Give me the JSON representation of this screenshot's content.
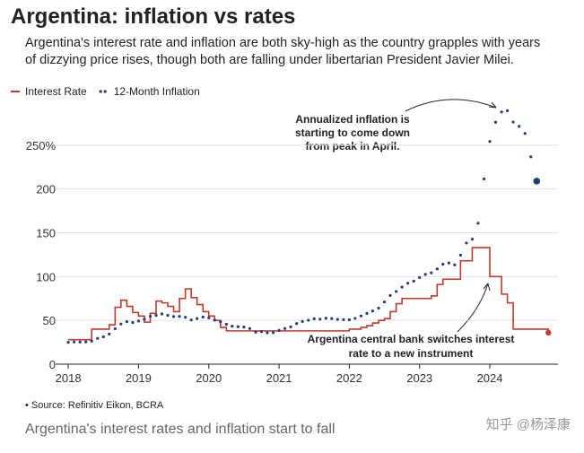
{
  "chart_data": {
    "type": "line",
    "title": "Argentina: inflation vs rates",
    "subtitle": [
      "Argentina's interest rate and inflation are both sky-high as the country grapples with years",
      "of dizzying price rises, though both are falling under libertarian President Javier Milei."
    ],
    "annotations": [
      [
        "Annualized inflation is",
        "starting to come down",
        "from peak in April."
      ],
      [
        "Argentina central bank switches interest",
        "rate to a new instrument"
      ]
    ],
    "source": "• Source: Refinitiv Eikon, BCRA",
    "caption": "Argentina's interest rates and inflation start to fall",
    "watermark": "知乎 @杨泽康",
    "xlim": [
      2017.82,
      2024.97
    ],
    "xticks": [
      2018,
      2019,
      2020,
      2021,
      2022,
      2023,
      2024
    ],
    "ylim": [
      0,
      300
    ],
    "yticks": [
      0,
      50,
      100,
      150,
      200,
      {
        "value": 250,
        "label": "250%"
      }
    ],
    "grid": true,
    "series": [
      {
        "name": "Interest Rate",
        "color": "#c0392b",
        "style": "step",
        "x": [
          2018.0,
          2018.083,
          2018.167,
          2018.25,
          2018.333,
          2018.417,
          2018.5,
          2018.583,
          2018.667,
          2018.75,
          2018.833,
          2018.917,
          2019.0,
          2019.083,
          2019.167,
          2019.25,
          2019.333,
          2019.417,
          2019.5,
          2019.583,
          2019.667,
          2019.75,
          2019.833,
          2019.917,
          2020.0,
          2020.083,
          2020.167,
          2020.25,
          2020.333,
          2020.417,
          2020.5,
          2020.583,
          2020.667,
          2020.75,
          2020.833,
          2020.917,
          2021.0,
          2021.083,
          2021.167,
          2021.25,
          2021.333,
          2021.417,
          2021.5,
          2021.583,
          2021.667,
          2021.75,
          2021.833,
          2021.917,
          2022.0,
          2022.083,
          2022.167,
          2022.25,
          2022.333,
          2022.417,
          2022.5,
          2022.583,
          2022.667,
          2022.75,
          2022.833,
          2022.917,
          2023.0,
          2023.083,
          2023.167,
          2023.25,
          2023.333,
          2023.417,
          2023.5,
          2023.583,
          2023.667,
          2023.75,
          2023.833,
          2023.917,
          2024.0,
          2024.083,
          2024.167,
          2024.25,
          2024.333,
          2024.417,
          2024.5,
          2024.583,
          2024.667,
          2024.75,
          2024.833
        ],
        "values": [
          28,
          28,
          28,
          28,
          40,
          40,
          40,
          45,
          65,
          73,
          66,
          59,
          55,
          48,
          58,
          72,
          70,
          66,
          60,
          75,
          86,
          76,
          68,
          60,
          55,
          50,
          42,
          38,
          38,
          38,
          38,
          38,
          38,
          38,
          38,
          38,
          38,
          38,
          38,
          38,
          38,
          38,
          38,
          38,
          38,
          38,
          38,
          38,
          40,
          40,
          42,
          44,
          47,
          50,
          52,
          60,
          69,
          75,
          75,
          75,
          75,
          75,
          78,
          91,
          97,
          97,
          97,
          118,
          118,
          133,
          133,
          133,
          100,
          100,
          80,
          70,
          40,
          40,
          40,
          40,
          40,
          40,
          36
        ]
      },
      {
        "name": "12-Month Inflation",
        "color": "#1f3f7a",
        "style": "dots",
        "x": [
          2018.0,
          2018.083,
          2018.167,
          2018.25,
          2018.333,
          2018.417,
          2018.5,
          2018.583,
          2018.667,
          2018.75,
          2018.833,
          2018.917,
          2019.0,
          2019.083,
          2019.167,
          2019.25,
          2019.333,
          2019.417,
          2019.5,
          2019.583,
          2019.667,
          2019.75,
          2019.833,
          2019.917,
          2020.0,
          2020.083,
          2020.167,
          2020.25,
          2020.333,
          2020.417,
          2020.5,
          2020.583,
          2020.667,
          2020.75,
          2020.833,
          2020.917,
          2021.0,
          2021.083,
          2021.167,
          2021.25,
          2021.333,
          2021.417,
          2021.5,
          2021.583,
          2021.667,
          2021.75,
          2021.833,
          2021.917,
          2022.0,
          2022.083,
          2022.167,
          2022.25,
          2022.333,
          2022.417,
          2022.5,
          2022.583,
          2022.667,
          2022.75,
          2022.833,
          2022.917,
          2023.0,
          2023.083,
          2023.167,
          2023.25,
          2023.333,
          2023.417,
          2023.5,
          2023.583,
          2023.667,
          2023.75,
          2023.833,
          2023.917,
          2024.0,
          2024.083,
          2024.167,
          2024.25,
          2024.333,
          2024.417,
          2024.5,
          2024.583,
          2024.667
        ],
        "values": [
          25,
          25.4,
          25.4,
          25.5,
          26.3,
          29.5,
          31.2,
          34.4,
          40.5,
          45.9,
          48.5,
          47.6,
          49.3,
          51.3,
          54.7,
          55.8,
          57.3,
          55.8,
          54.4,
          54.5,
          53.5,
          50.5,
          52.1,
          53.8,
          52.9,
          50.3,
          48.4,
          45.6,
          43.4,
          42.8,
          42.4,
          40.7,
          36.6,
          37.2,
          35.8,
          36.1,
          38.5,
          40.7,
          42.6,
          46.3,
          48.8,
          50.2,
          51.8,
          51.4,
          52.5,
          52.1,
          51.2,
          50.9,
          50.7,
          52.3,
          55.1,
          58.0,
          60.7,
          64.0,
          71.0,
          78.5,
          83.0,
          88.0,
          92.4,
          94.8,
          98.8,
          102.5,
          104.3,
          108.8,
          114.2,
          115.6,
          113.4,
          124.4,
          138.3,
          142.7,
          160.9,
          211.4,
          254.2,
          276.2,
          287.9,
          289.4,
          276.4,
          271.5,
          263.4,
          236.7,
          209.0
        ]
      }
    ]
  }
}
